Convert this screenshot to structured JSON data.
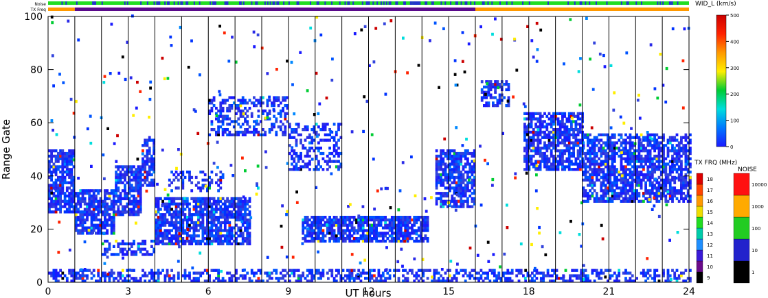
{
  "chart_data": {
    "type": "heatmap",
    "title": "",
    "xlabel": "UT hours",
    "ylabel": "Range Gate",
    "xlim": [
      0,
      24
    ],
    "ylim": [
      0,
      100
    ],
    "x_ticks": [
      "0",
      "3",
      "6",
      "9",
      "12",
      "15",
      "18",
      "21",
      "24"
    ],
    "y_ticks": [
      "0",
      "20",
      "40",
      "60",
      "80",
      "100"
    ],
    "vertical_gridlines_hours": [
      1,
      2,
      3,
      4,
      5,
      6,
      7,
      8,
      9,
      10,
      11,
      12,
      13,
      14,
      15,
      16,
      17,
      18,
      19,
      20,
      21,
      22,
      23
    ],
    "top_bars": {
      "noise_label": "Noise",
      "txfreq_label": "TX Freq",
      "txfreq_segments": [
        {
          "start": 0,
          "end": 1,
          "color": "#ff9900"
        },
        {
          "start": 1,
          "end": 16,
          "color": "#5a0a8c"
        },
        {
          "start": 16,
          "end": 24,
          "color": "#ff9900"
        }
      ],
      "noise_base_color": "#22dd22",
      "noise_alt_color": "#2233cc"
    },
    "colorbar_width": {
      "title": "WID_L (km/s)",
      "ticks": [
        "0",
        "100",
        "200",
        "300",
        "400",
        "500"
      ],
      "range": [
        0,
        500
      ],
      "stops": [
        "#1a1aff",
        "#0077ff",
        "#00dddd",
        "#00cc33",
        "#ffee00",
        "#ff9900",
        "#ff2200",
        "#cc0000"
      ]
    },
    "colorbar_freq": {
      "title": "TX FRQ (MHz)",
      "ticks": [
        "9",
        "10",
        "11",
        "12",
        "13",
        "14",
        "15",
        "16",
        "17",
        "18"
      ],
      "colors": [
        "#000000",
        "#6a0a8a",
        "#3a1ad8",
        "#1f8fff",
        "#00ccaa",
        "#22dd22",
        "#eedd00",
        "#ff9900",
        "#ff4400",
        "#dd0000"
      ]
    },
    "colorbar_noise": {
      "title": "NOISE",
      "ticks": [
        "1",
        "10",
        "100",
        "1000",
        "10000"
      ],
      "colors": [
        "#000000",
        "#2222cc",
        "#22cc22",
        "#ffaa00",
        "#ff1111"
      ]
    },
    "echo_regions": [
      {
        "t0": 0.0,
        "t1": 1.0,
        "g0": 26,
        "g1": 50,
        "density": 0.7
      },
      {
        "t0": 1.0,
        "t1": 2.5,
        "g0": 18,
        "g1": 35,
        "density": 0.75
      },
      {
        "t0": 2.5,
        "t1": 3.5,
        "g0": 25,
        "g1": 44,
        "density": 0.7
      },
      {
        "t0": 3.5,
        "t1": 4.0,
        "g0": 36,
        "g1": 55,
        "density": 0.7
      },
      {
        "t0": 4.0,
        "t1": 7.5,
        "g0": 14,
        "g1": 32,
        "density": 0.75
      },
      {
        "t0": 2.0,
        "t1": 4.0,
        "g0": 10,
        "g1": 16,
        "density": 0.5
      },
      {
        "t0": 4.5,
        "t1": 6.5,
        "g0": 34,
        "g1": 42,
        "density": 0.35
      },
      {
        "t0": 6.0,
        "t1": 9.0,
        "g0": 55,
        "g1": 70,
        "density": 0.45
      },
      {
        "t0": 9.0,
        "t1": 11.0,
        "g0": 42,
        "g1": 60,
        "density": 0.4
      },
      {
        "t0": 9.5,
        "t1": 14.2,
        "g0": 15,
        "g1": 25,
        "density": 0.8
      },
      {
        "t0": 14.5,
        "t1": 16.0,
        "g0": 28,
        "g1": 50,
        "density": 0.75
      },
      {
        "t0": 16.2,
        "t1": 17.2,
        "g0": 66,
        "g1": 76,
        "density": 0.55
      },
      {
        "t0": 17.8,
        "t1": 20.0,
        "g0": 42,
        "g1": 64,
        "density": 0.7
      },
      {
        "t0": 20.0,
        "t1": 24.0,
        "g0": 30,
        "g1": 56,
        "density": 0.7
      },
      {
        "t0": 0.0,
        "t1": 24.0,
        "g0": 0,
        "g1": 5,
        "density": 0.45
      }
    ]
  }
}
